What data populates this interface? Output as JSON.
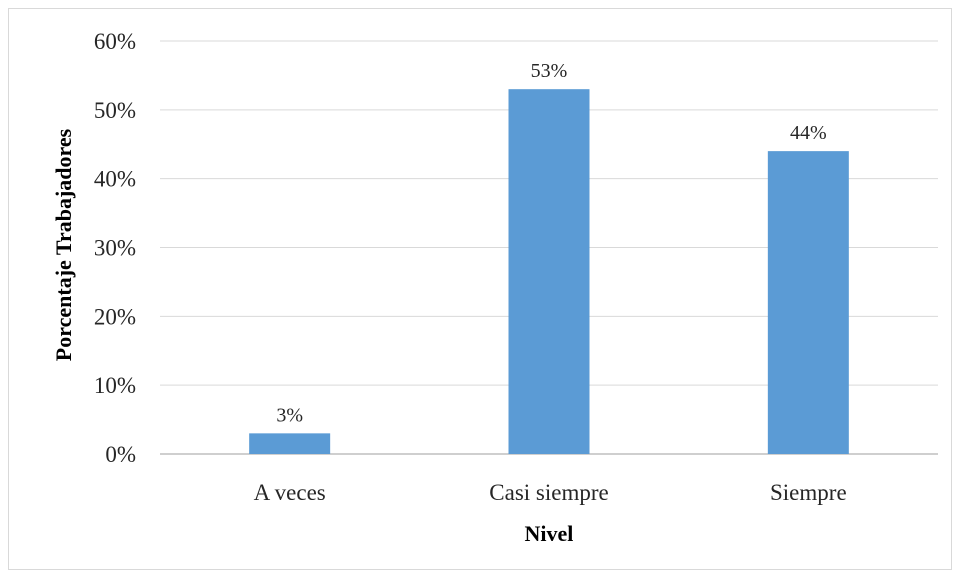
{
  "chart_data": {
    "type": "bar",
    "title": "",
    "xlabel": "Nivel",
    "ylabel": "Porcentaje Trabajadores",
    "categories": [
      "A veces",
      "Casi siempre",
      "Siempre"
    ],
    "values": [
      3,
      53,
      44
    ],
    "value_labels": [
      "3%",
      "53%",
      "44%"
    ],
    "ylim": [
      0,
      60
    ],
    "yticks": [
      0,
      10,
      20,
      30,
      40,
      50,
      60
    ],
    "ytick_labels": [
      "0%",
      "10%",
      "20%",
      "30%",
      "40%",
      "50%",
      "60%"
    ],
    "grid": true,
    "legend": "none",
    "bar_color": "#5b9bd5",
    "grid_color": "#d9d9d9"
  }
}
